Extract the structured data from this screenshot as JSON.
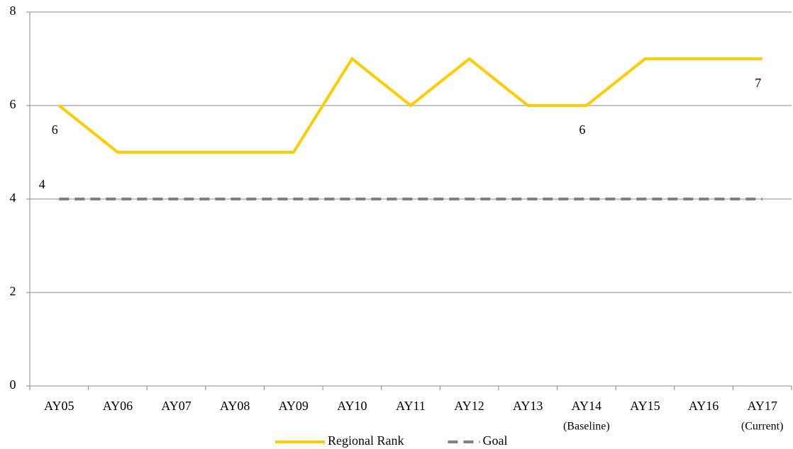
{
  "chart_data": {
    "type": "line",
    "categories": [
      "AY05",
      "AY06",
      "AY07",
      "AY08",
      "AY09",
      "AY10",
      "AY11",
      "AY12",
      "AY13",
      "AY14",
      "AY15",
      "AY16",
      "AY17"
    ],
    "series": [
      {
        "name": "Regional Rank",
        "color": "#ffcc00",
        "dashed": false,
        "label_position": "below",
        "values": [
          6,
          5,
          5,
          5,
          5,
          7,
          6,
          7,
          6,
          6,
          7,
          7,
          7
        ],
        "value_labels": [
          "6",
          null,
          null,
          null,
          null,
          null,
          null,
          null,
          null,
          "6",
          null,
          null,
          "7"
        ]
      },
      {
        "name": "Goal",
        "color": "#808080",
        "dashed": true,
        "label_position": "above",
        "values": [
          4,
          4,
          4,
          4,
          4,
          4,
          4,
          4,
          4,
          4,
          4,
          4,
          4
        ],
        "value_labels": [
          "4",
          null,
          null,
          null,
          null,
          null,
          null,
          null,
          null,
          null,
          null,
          null,
          null
        ]
      }
    ],
    "annotations": [
      {
        "category": "AY14",
        "text": "(Baseline)",
        "color": "#00b0f0"
      },
      {
        "category": "AY17",
        "text": "(Current)",
        "color": "#00b050"
      }
    ],
    "ylim": [
      0,
      8
    ],
    "yticks": [
      0,
      2,
      4,
      6,
      8
    ],
    "grid": true,
    "legend": "bottom"
  }
}
